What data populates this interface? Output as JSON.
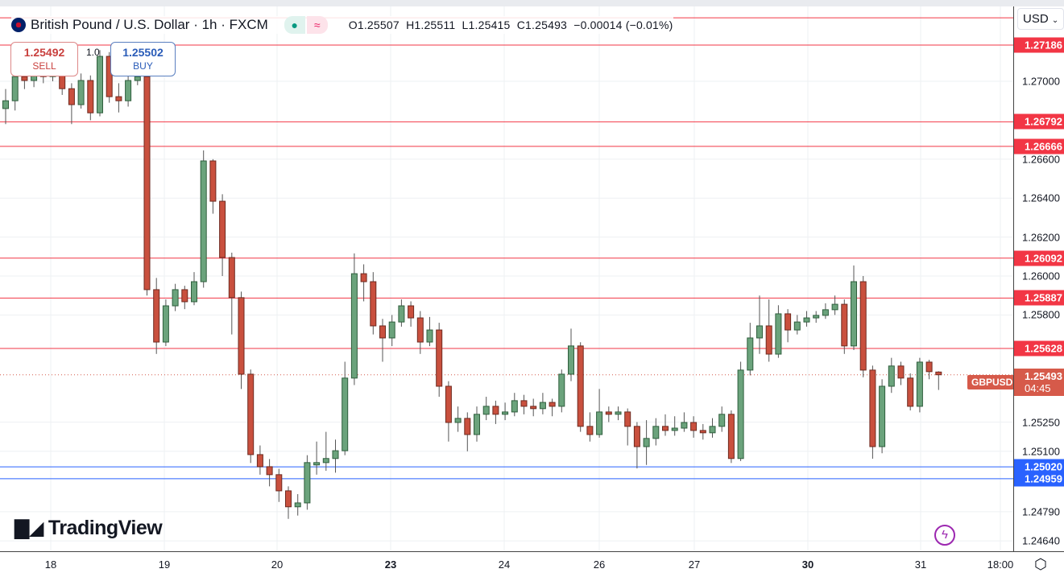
{
  "header": {
    "title": "British Pound / U.S. Dollar · 1h · FXCM",
    "open": "O1.25507",
    "high": "H1.25511",
    "low": "L1.25415",
    "close": "C1.25493",
    "change": "−0.00014 (−0.01%)"
  },
  "trade": {
    "sell_price": "1.25492",
    "sell_label": "SELL",
    "buy_price": "1.25502",
    "buy_label": "BUY",
    "spread": "1.0"
  },
  "currency": "USD",
  "logo": "TradingView",
  "colors": {
    "up": "#6ba37c",
    "down": "#c9503e",
    "resistance": "#f23645",
    "support": "#2962ff",
    "last": "#d65a4a"
  },
  "last": {
    "symbol": "GBPUSD",
    "price": "1.25493",
    "countdown": "04:45"
  },
  "chart_data": {
    "type": "candlestick",
    "interval": "1h",
    "ylim": [
      1.246,
      1.2742
    ],
    "y_ticks": [
      "1.27000",
      "1.26600",
      "1.26400",
      "1.26200",
      "1.26000",
      "1.25800",
      "1.25250",
      "1.25100",
      "1.24790",
      "1.24640"
    ],
    "x_ticks": [
      "18",
      "19",
      "20",
      "23",
      "24",
      "26",
      "27",
      "30",
      "31",
      "18:00"
    ],
    "levels": [
      {
        "price": 1.27326,
        "label": "",
        "type": "resistance"
      },
      {
        "price": 1.27186,
        "label": "1.27186",
        "type": "resistance"
      },
      {
        "price": 1.26792,
        "label": "1.26792",
        "type": "resistance"
      },
      {
        "price": 1.26666,
        "label": "1.26666",
        "type": "resistance"
      },
      {
        "price": 1.26092,
        "label": "1.26092",
        "type": "resistance"
      },
      {
        "price": 1.25887,
        "label": "1.25887",
        "type": "resistance"
      },
      {
        "price": 1.25628,
        "label": "1.25628",
        "type": "resistance"
      },
      {
        "price": 1.2502,
        "label": "1.25020",
        "type": "support"
      },
      {
        "price": 1.24959,
        "label": "1.24959",
        "type": "support"
      }
    ],
    "ohlc": [
      [
        1.2686,
        1.2696,
        1.2678,
        1.269
      ],
      [
        1.269,
        1.2706,
        1.2685,
        1.27024
      ],
      [
        1.27024,
        1.2707,
        1.2696,
        1.27004
      ],
      [
        1.27004,
        1.271,
        1.2697,
        1.27066
      ],
      [
        1.27066,
        1.271,
        1.2699,
        1.27024
      ],
      [
        1.27024,
        1.2712,
        1.27,
        1.27086
      ],
      [
        1.27086,
        1.2711,
        1.2693,
        1.26962
      ],
      [
        1.26962,
        1.2699,
        1.2678,
        1.2688
      ],
      [
        1.2688,
        1.2704,
        1.2686,
        1.27004
      ],
      [
        1.27004,
        1.2703,
        1.268,
        1.26838
      ],
      [
        1.26838,
        1.2716,
        1.2682,
        1.27128
      ],
      [
        1.27128,
        1.2715,
        1.2689,
        1.26921
      ],
      [
        1.26921,
        1.2699,
        1.2684,
        1.269
      ],
      [
        1.269,
        1.2704,
        1.2687,
        1.27004
      ],
      [
        1.27004,
        1.2706,
        1.2698,
        1.27024
      ],
      [
        1.27024,
        1.2704,
        1.259,
        1.2593
      ],
      [
        1.2593,
        1.2599,
        1.256,
        1.25661
      ],
      [
        1.25661,
        1.2588,
        1.2564,
        1.25847
      ],
      [
        1.25847,
        1.2596,
        1.2582,
        1.2593
      ],
      [
        1.2593,
        1.2595,
        1.2583,
        1.25868
      ],
      [
        1.25868,
        1.2602,
        1.2585,
        1.25971
      ],
      [
        1.25971,
        1.26645,
        1.2594,
        1.26591
      ],
      [
        1.26591,
        1.266,
        1.2632,
        1.26384
      ],
      [
        1.26384,
        1.2642,
        1.26,
        1.26095
      ],
      [
        1.26095,
        1.2612,
        1.257,
        1.25889
      ],
      [
        1.25889,
        1.2592,
        1.2542,
        1.25496
      ],
      [
        1.25496,
        1.2552,
        1.2504,
        1.25083
      ],
      [
        1.25083,
        1.2513,
        1.2498,
        1.25021
      ],
      [
        1.25021,
        1.2506,
        1.2492,
        1.2498
      ],
      [
        1.2498,
        1.2501,
        1.2484,
        1.24897
      ],
      [
        1.24897,
        1.2492,
        1.24753,
        1.24815
      ],
      [
        1.24815,
        1.2488,
        1.2477,
        1.24835
      ],
      [
        1.24835,
        1.2508,
        1.248,
        1.25042
      ],
      [
        1.2503,
        1.2515,
        1.2498,
        1.25042
      ],
      [
        1.25042,
        1.252,
        1.25,
        1.25063
      ],
      [
        1.25063,
        1.2516,
        1.2499,
        1.25103
      ],
      [
        1.25103,
        1.2556,
        1.2508,
        1.25476
      ],
      [
        1.25476,
        1.26116,
        1.2544,
        1.26012
      ],
      [
        1.26012,
        1.2606,
        1.2587,
        1.25971
      ],
      [
        1.25971,
        1.2602,
        1.257,
        1.25744
      ],
      [
        1.25744,
        1.2578,
        1.2556,
        1.25682
      ],
      [
        1.25682,
        1.258,
        1.2564,
        1.25764
      ],
      [
        1.25764,
        1.2588,
        1.2574,
        1.25847
      ],
      [
        1.25847,
        1.2587,
        1.2574,
        1.25785
      ],
      [
        1.25785,
        1.2582,
        1.256,
        1.25661
      ],
      [
        1.25661,
        1.2579,
        1.2564,
        1.25723
      ],
      [
        1.25723,
        1.2576,
        1.2538,
        1.25434
      ],
      [
        1.25434,
        1.2546,
        1.2515,
        1.25248
      ],
      [
        1.25248,
        1.2533,
        1.252,
        1.25269
      ],
      [
        1.25269,
        1.253,
        1.251,
        1.25186
      ],
      [
        1.25186,
        1.2533,
        1.2515,
        1.2529
      ],
      [
        1.2529,
        1.2538,
        1.2526,
        1.25331
      ],
      [
        1.25331,
        1.2536,
        1.2524,
        1.2529
      ],
      [
        1.2529,
        1.2535,
        1.2526,
        1.25302
      ],
      [
        1.25302,
        1.254,
        1.2528,
        1.2536
      ],
      [
        1.2536,
        1.2539,
        1.2529,
        1.25331
      ],
      [
        1.25331,
        1.2537,
        1.2528,
        1.25319
      ],
      [
        1.25319,
        1.254,
        1.2529,
        1.25351
      ],
      [
        1.25351,
        1.2537,
        1.2528,
        1.25331
      ],
      [
        1.25331,
        1.2552,
        1.253,
        1.25496
      ],
      [
        1.25496,
        1.2573,
        1.2546,
        1.25641
      ],
      [
        1.25641,
        1.2566,
        1.252,
        1.25228
      ],
      [
        1.25228,
        1.253,
        1.2515,
        1.25186
      ],
      [
        1.25186,
        1.2542,
        1.2517,
        1.25302
      ],
      [
        1.25302,
        1.2533,
        1.2525,
        1.2529
      ],
      [
        1.2529,
        1.2533,
        1.2526,
        1.25302
      ],
      [
        1.25302,
        1.2532,
        1.2513,
        1.25228
      ],
      [
        1.25228,
        1.2525,
        1.25012,
        1.25124
      ],
      [
        1.25124,
        1.2526,
        1.2503,
        1.25166
      ],
      [
        1.25166,
        1.2527,
        1.2513,
        1.25228
      ],
      [
        1.25228,
        1.2529,
        1.2518,
        1.25207
      ],
      [
        1.25207,
        1.2528,
        1.2518,
        1.25219
      ],
      [
        1.25219,
        1.253,
        1.252,
        1.25248
      ],
      [
        1.25248,
        1.2528,
        1.2517,
        1.25207
      ],
      [
        1.25207,
        1.2524,
        1.2516,
        1.25195
      ],
      [
        1.25195,
        1.2527,
        1.2517,
        1.25228
      ],
      [
        1.25228,
        1.2533,
        1.252,
        1.2529
      ],
      [
        1.2529,
        1.2531,
        1.2504,
        1.25063
      ],
      [
        1.25063,
        1.2556,
        1.2505,
        1.25517
      ],
      [
        1.25517,
        1.2576,
        1.2549,
        1.25682
      ],
      [
        1.25682,
        1.259,
        1.256,
        1.25744
      ],
      [
        1.25744,
        1.2588,
        1.2556,
        1.25599
      ],
      [
        1.25599,
        1.2585,
        1.2558,
        1.25806
      ],
      [
        1.25806,
        1.2583,
        1.2566,
        1.25723
      ],
      [
        1.25723,
        1.258,
        1.257,
        1.25764
      ],
      [
        1.25764,
        1.2582,
        1.2574,
        1.25785
      ],
      [
        1.25785,
        1.2582,
        1.2576,
        1.25798
      ],
      [
        1.25798,
        1.2586,
        1.2578,
        1.25827
      ],
      [
        1.25827,
        1.259,
        1.258,
        1.25855
      ],
      [
        1.25855,
        1.2588,
        1.256,
        1.25641
      ],
      [
        1.25641,
        1.26054,
        1.2562,
        1.25971
      ],
      [
        1.25971,
        1.26,
        1.2548,
        1.25517
      ],
      [
        1.25517,
        1.2554,
        1.25062,
        1.25124
      ],
      [
        1.25124,
        1.2547,
        1.2509,
        1.25434
      ],
      [
        1.25434,
        1.2558,
        1.254,
        1.25538
      ],
      [
        1.25538,
        1.2556,
        1.2544,
        1.25476
      ],
      [
        1.25476,
        1.255,
        1.2531,
        1.25331
      ],
      [
        1.25331,
        1.2558,
        1.253,
        1.25558
      ],
      [
        1.25558,
        1.2557,
        1.2547,
        1.25509
      ],
      [
        1.25507,
        1.25511,
        1.25415,
        1.25493
      ]
    ]
  }
}
